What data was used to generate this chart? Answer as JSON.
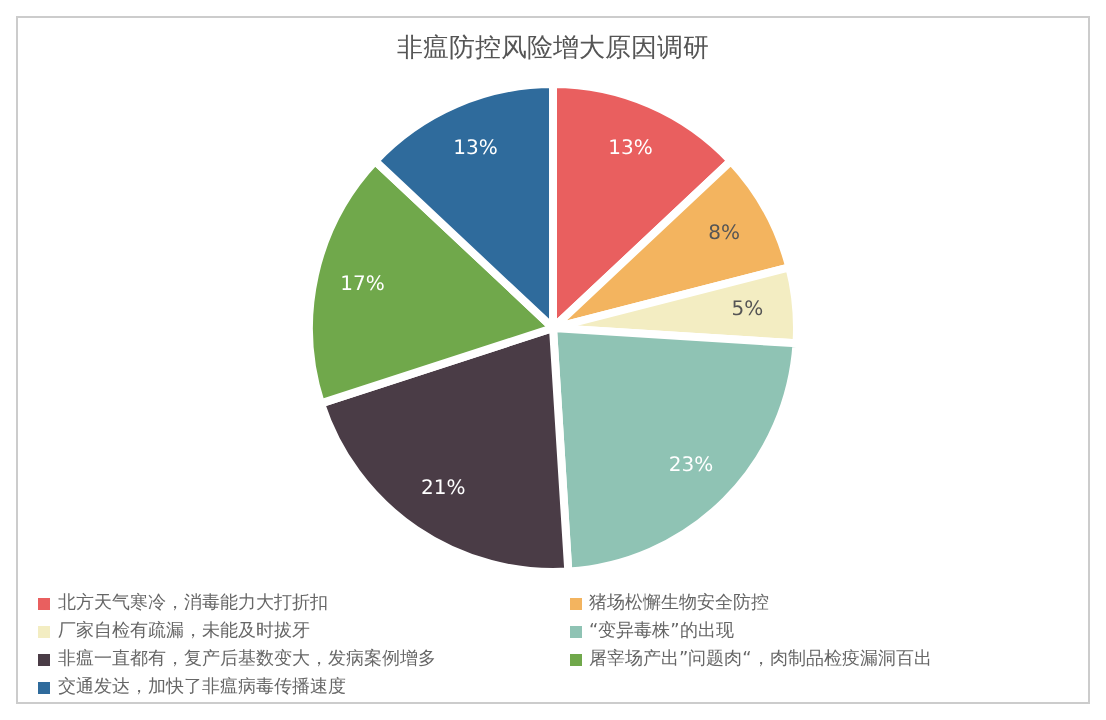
{
  "chart_data": {
    "type": "pie",
    "title": "非瘟防控风险增大原因调研",
    "categories": [
      "北方天气寒冷，消毒能力大打折扣",
      "猪场松懈生物安全防控",
      "厂家自检有疏漏，未能及时拔牙",
      "“变异毒株”的出现",
      "非瘟一直都有，复产后基数变大，发病案例增多",
      "屠宰场产出”问题肉“，肉制品检疫漏洞百出",
      "交通发达，加快了非瘟病毒传播速度"
    ],
    "values": [
      13,
      8,
      5,
      23,
      21,
      17,
      13
    ],
    "colors": [
      "#e95f5f",
      "#f3b45f",
      "#f3edc2",
      "#8fc3b4",
      "#4a3c46",
      "#70a84b",
      "#2f6b9c"
    ],
    "value_labels": [
      "13%",
      "8%",
      "5%",
      "23%",
      "21%",
      "17%",
      "13%"
    ],
    "legend": "bottom"
  }
}
